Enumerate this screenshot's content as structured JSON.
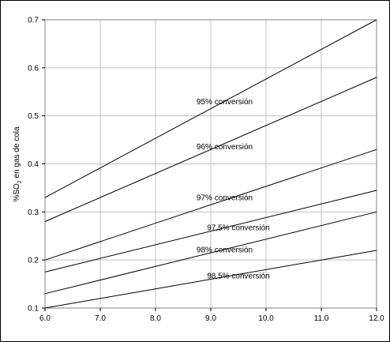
{
  "chart_data": {
    "type": "line",
    "title": "",
    "xlabel": "",
    "ylabel_parts": [
      "%SO",
      "2",
      " en gas de cola"
    ],
    "xlim": [
      6.0,
      12.0
    ],
    "ylim": [
      0.1,
      0.7
    ],
    "x_ticks": [
      6.0,
      7.0,
      8.0,
      9.0,
      10.0,
      11.0,
      12.0
    ],
    "x_tick_labels": [
      "6.0",
      "7.0",
      "8.0",
      "9.0",
      "10.0",
      "11.0",
      "12.0"
    ],
    "y_ticks": [
      0.1,
      0.2,
      0.3,
      0.4,
      0.5,
      0.6,
      0.7
    ],
    "y_tick_labels": [
      "0.1",
      "0.2",
      "0.3",
      "0.4",
      "0.5",
      "0.6",
      "0.7"
    ],
    "grid": true,
    "line_color": "#000000",
    "grid_color": "#c0c0c0",
    "series": [
      {
        "name": "95% conversión",
        "x": [
          6.0,
          12.0
        ],
        "y": [
          0.33,
          0.7
        ],
        "label_at": [
          9.25,
          0.53
        ]
      },
      {
        "name": "96% conversión",
        "x": [
          6.0,
          12.0
        ],
        "y": [
          0.28,
          0.58
        ],
        "label_at": [
          9.25,
          0.436
        ]
      },
      {
        "name": "97% conversión",
        "x": [
          6.0,
          12.0
        ],
        "y": [
          0.2,
          0.43
        ],
        "label_at": [
          9.25,
          0.33
        ]
      },
      {
        "name": "97,5% conversión",
        "x": [
          6.0,
          12.0
        ],
        "y": [
          0.175,
          0.345
        ],
        "label_at": [
          9.5,
          0.268
        ]
      },
      {
        "name": "98% conversión",
        "x": [
          6.0,
          12.0
        ],
        "y": [
          0.13,
          0.3
        ],
        "label_at": [
          9.25,
          0.222
        ]
      },
      {
        "name": "98,5% conversión",
        "x": [
          6.0,
          8.0,
          12.0
        ],
        "y": [
          0.1,
          0.14,
          0.22
        ],
        "label_at": [
          9.5,
          0.167
        ]
      }
    ]
  }
}
